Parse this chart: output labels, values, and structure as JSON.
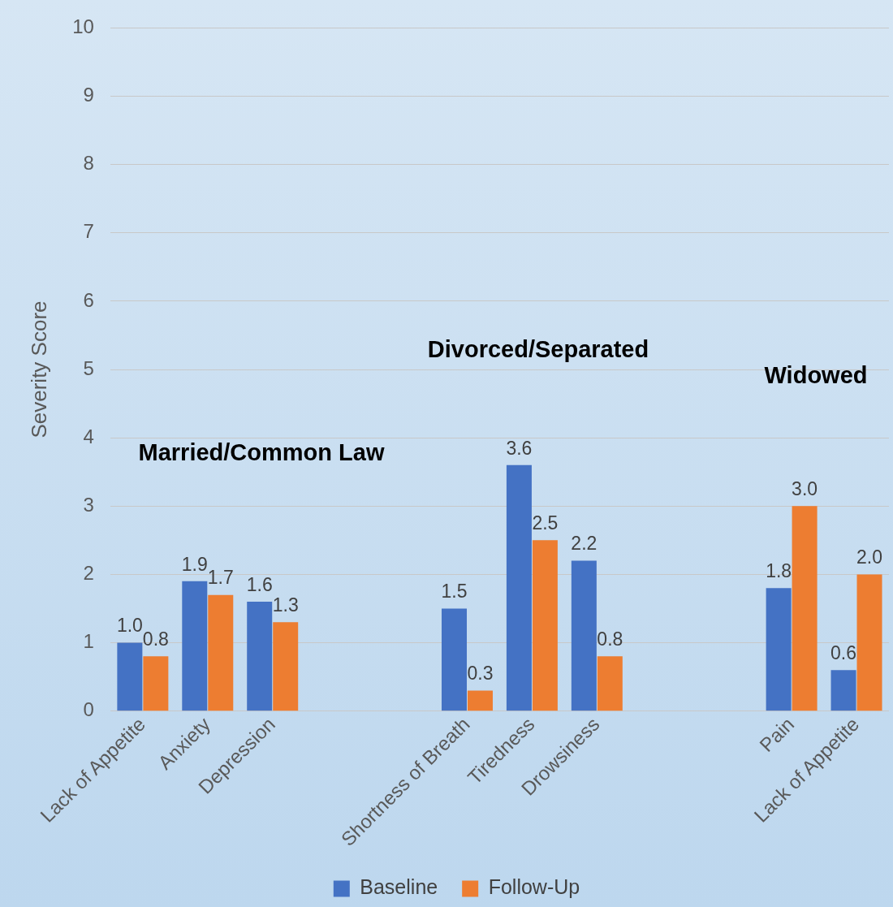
{
  "chart_data": {
    "type": "bar",
    "ylabel": "Severity Score",
    "categories": [
      "Lack of Appetite",
      "Anxiety",
      "Depression",
      null,
      null,
      "Shortness of Breath",
      "Tiredness",
      "Drowsiness",
      null,
      null,
      "Pain",
      "Lack of Appetite"
    ],
    "series": [
      {
        "name": "Baseline",
        "color": "#4472c4",
        "values": [
          1.0,
          1.9,
          1.6,
          null,
          null,
          1.5,
          3.6,
          2.2,
          null,
          null,
          1.8,
          0.6
        ],
        "value_labels": [
          "1.0",
          "1.9",
          "1.6",
          null,
          null,
          "1.5",
          "3.6",
          "2.2",
          null,
          null,
          "1.8",
          "0.6"
        ]
      },
      {
        "name": "Follow-Up",
        "color": "#ed7d31",
        "values": [
          0.8,
          1.7,
          1.3,
          null,
          null,
          0.3,
          2.5,
          0.8,
          null,
          null,
          3.0,
          2.0
        ],
        "value_labels": [
          "0.8",
          "1.7",
          "1.3",
          null,
          null,
          "0.3",
          "2.5",
          "0.8",
          null,
          null,
          "3.0",
          "2.0"
        ]
      }
    ],
    "ylim": [
      0,
      10
    ],
    "yticks": [
      0,
      1,
      2,
      3,
      4,
      5,
      6,
      7,
      8,
      9,
      10
    ],
    "grid": "y",
    "legend": "bottom",
    "annotations": [
      "Married/Common Law",
      "Divorced/Separated",
      "Widowed"
    ]
  }
}
